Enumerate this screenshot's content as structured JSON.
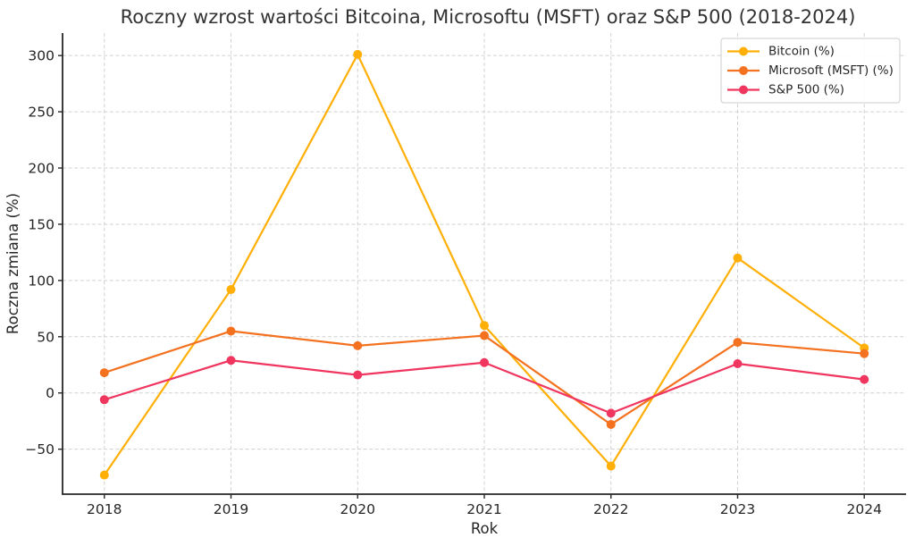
{
  "page": {
    "background": "#ffffff"
  },
  "chart_data": {
    "type": "line",
    "title": "Roczny wzrost wartości Bitcoina, Microsoftu (MSFT) oraz S&P 500 (2018-2024)",
    "xlabel": "Rok",
    "ylabel": "Roczna zmiana (%)",
    "x": [
      2018,
      2019,
      2020,
      2021,
      2022,
      2023,
      2024
    ],
    "series": [
      {
        "name": "Bitcoin (%)",
        "color": "#FFAF05",
        "values": [
          -73,
          92,
          301,
          60,
          -65,
          120,
          40
        ]
      },
      {
        "name": "Microsoft (MSFT) (%)",
        "color": "#F4711F",
        "values": [
          18,
          55,
          42,
          51,
          -28,
          45,
          35
        ]
      },
      {
        "name": "S&P 500 (%)",
        "color": "#F0355F",
        "values": [
          -6,
          29,
          16,
          27,
          -18,
          26,
          12
        ]
      }
    ],
    "xticks": [
      2018,
      2019,
      2020,
      2021,
      2022,
      2023,
      2024
    ],
    "yticks": [
      -50,
      0,
      50,
      100,
      150,
      200,
      250,
      300
    ],
    "xlim": [
      2017.67,
      2024.33
    ],
    "ylim": [
      -90,
      320
    ],
    "grid": "dashed",
    "legend_position": "top-right"
  },
  "style": {
    "text_color": "#262626",
    "title_color": "#333333",
    "grid_color": "#c9c9c9",
    "spine_color": "#262626",
    "line_width": 2.2,
    "marker_radius": 5,
    "legend_border": "#cccccc",
    "legend_bg": "#ffffff"
  }
}
